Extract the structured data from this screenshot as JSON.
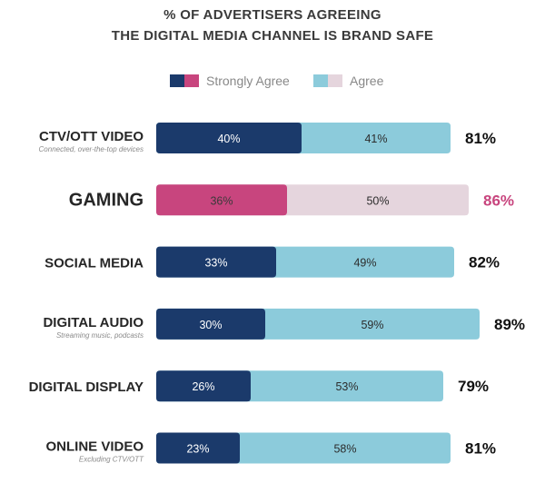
{
  "chart_data": {
    "type": "bar",
    "orientation": "horizontal",
    "stacked": true,
    "title_lines": [
      "% OF ADVERTISERS AGREEING",
      "THE DIGITAL MEDIA CHANNEL IS BRAND SAFE"
    ],
    "legend": [
      {
        "label": "Strongly Agree",
        "colors": [
          "#1b3a6b",
          "#c8457e"
        ]
      },
      {
        "label": "Agree",
        "colors": [
          "#8ccbdb",
          "#e5d5dd"
        ]
      }
    ],
    "legend_position": "top",
    "grid": false,
    "categories": [
      {
        "name": "CTV/OTT VIDEO",
        "subtitle": "Connected, over-the-top devices",
        "strongly_agree": 40,
        "agree": 41,
        "total": 81,
        "highlight": false
      },
      {
        "name": "GAMING",
        "subtitle": "",
        "strongly_agree": 36,
        "agree": 50,
        "total": 86,
        "highlight": true
      },
      {
        "name": "SOCIAL MEDIA",
        "subtitle": "",
        "strongly_agree": 33,
        "agree": 49,
        "total": 82,
        "highlight": false
      },
      {
        "name": "DIGITAL AUDIO",
        "subtitle": "Streaming music, podcasts",
        "strongly_agree": 30,
        "agree": 59,
        "total": 89,
        "highlight": false
      },
      {
        "name": "DIGITAL DISPLAY",
        "subtitle": "",
        "strongly_agree": 26,
        "agree": 53,
        "total": 79,
        "highlight": false
      },
      {
        "name": "ONLINE VIDEO",
        "subtitle": "Excluding CTV/OTT",
        "strongly_agree": 23,
        "agree": 58,
        "total": 81,
        "highlight": false
      }
    ],
    "value_suffix": "%",
    "colors": {
      "strongly_agree": "#1b3a6b",
      "agree": "#8ccbdb",
      "highlight_strongly_agree": "#c8457e",
      "highlight_agree": "#e5d5dd",
      "highlight_text": "#c8457e",
      "text": "#262626"
    }
  }
}
